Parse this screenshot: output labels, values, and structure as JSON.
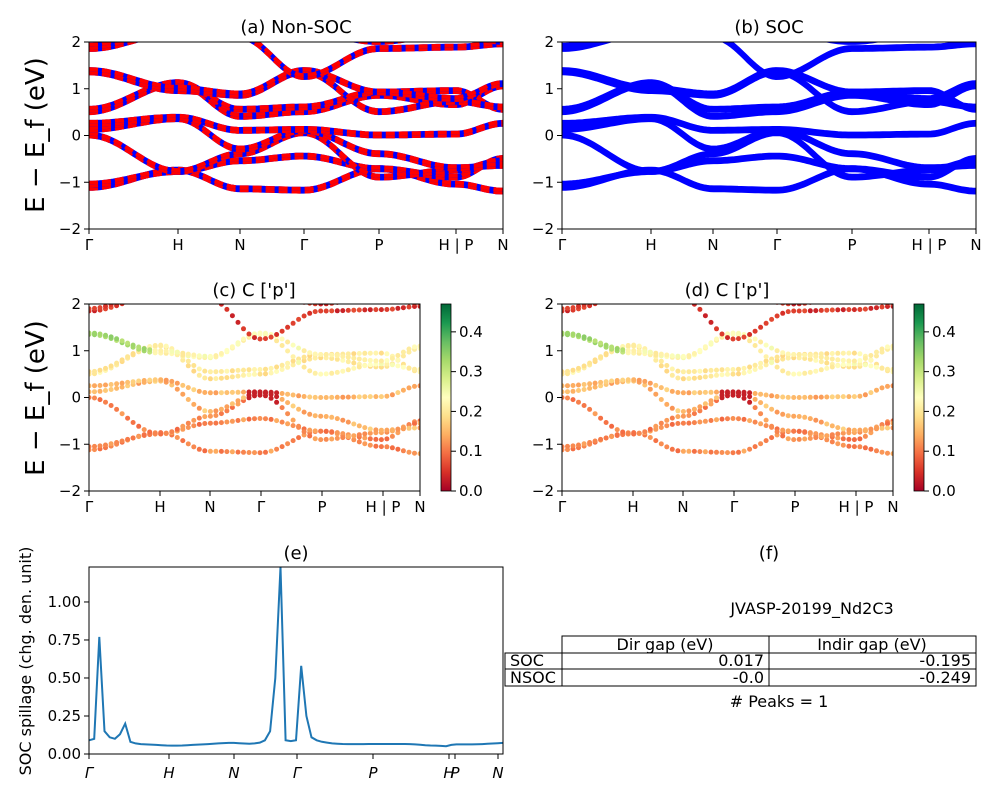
{
  "chart_data": [
    {
      "id": "a",
      "type": "line",
      "title": "(a) Non-SOC",
      "ylabel": "E − E_f (eV)",
      "ylim": [
        -2,
        2
      ],
      "yticks": [
        "−2",
        "−1",
        "0",
        "1",
        "2"
      ],
      "xticks": [
        "Γ",
        "H",
        "N",
        "Γ",
        "P",
        "H | P",
        "N"
      ],
      "series_colors": [
        "#ff0000",
        "#0000ff"
      ],
      "description_bands": "band structure with spin-up (red) and spin-down (blue) overlapping"
    },
    {
      "id": "b",
      "type": "line",
      "title": "(b) SOC",
      "ylim": [
        -2,
        2
      ],
      "yticks": [
        "−2",
        "−1",
        "0",
        "1",
        "2"
      ],
      "xticks": [
        "Γ",
        "H",
        "N",
        "Γ",
        "P",
        "H | P",
        "N"
      ],
      "series_colors": [
        "#0000ff"
      ]
    },
    {
      "id": "c",
      "type": "scatter",
      "title": "(c)  C ['p']",
      "ylabel": "E − E_f (eV)",
      "ylim": [
        -2,
        2
      ],
      "yticks": [
        "−2",
        "−1",
        "0",
        "1",
        "2"
      ],
      "xticks": [
        "Γ",
        "H",
        "N",
        "Γ",
        "P",
        "H | P",
        "N"
      ],
      "colorbar": {
        "ticks": [
          "0.0",
          "0.1",
          "0.2",
          "0.3",
          "0.4"
        ],
        "range": [
          0,
          0.47
        ],
        "cmap": "RdYlGn"
      }
    },
    {
      "id": "d",
      "type": "scatter",
      "title": "(d) C ['p']",
      "ylim": [
        -2,
        2
      ],
      "yticks": [
        "−2",
        "−1",
        "0",
        "1",
        "2"
      ],
      "xticks": [
        "Γ",
        "H",
        "N",
        "Γ",
        "P",
        "H | P",
        "N"
      ],
      "colorbar": {
        "ticks": [
          "0.0",
          "0.1",
          "0.2",
          "0.3",
          "0.4"
        ],
        "range": [
          0,
          0.47
        ],
        "cmap": "RdYlGn"
      }
    },
    {
      "id": "e",
      "type": "line",
      "title": "(e)",
      "ylabel": "SOC spillage (chg. den. unit)",
      "ylim": [
        0,
        1.23
      ],
      "yticks": [
        "0.00",
        "0.25",
        "0.50",
        "0.75",
        "1.00"
      ],
      "xticks": [
        "Γ",
        "H",
        "N",
        "Γ",
        "P",
        "H",
        "P",
        "N"
      ],
      "x": [
        0,
        1,
        2,
        3,
        4,
        5,
        6,
        7,
        8,
        9,
        10,
        11,
        12,
        13,
        14,
        15,
        16,
        17,
        18,
        19,
        20,
        21,
        22,
        23,
        24,
        25,
        26,
        27,
        28,
        29,
        30,
        31,
        32,
        33,
        34,
        35,
        36,
        37,
        38,
        39,
        40,
        41,
        42,
        43,
        44,
        45,
        46,
        47,
        48,
        49,
        50,
        51,
        52,
        53,
        54,
        55,
        56,
        57,
        58,
        59,
        60,
        61,
        62,
        63,
        64,
        65,
        66,
        67,
        68,
        69,
        70,
        71,
        72,
        73,
        74,
        75,
        76,
        77,
        78,
        79,
        80
      ],
      "values": [
        0.09,
        0.1,
        0.77,
        0.15,
        0.11,
        0.1,
        0.13,
        0.2,
        0.08,
        0.07,
        0.065,
        0.063,
        0.062,
        0.06,
        0.058,
        0.056,
        0.055,
        0.055,
        0.056,
        0.058,
        0.06,
        0.062,
        0.063,
        0.065,
        0.068,
        0.07,
        0.072,
        0.073,
        0.073,
        0.071,
        0.069,
        0.068,
        0.07,
        0.075,
        0.09,
        0.15,
        0.5,
        1.25,
        0.09,
        0.085,
        0.09,
        0.58,
        0.25,
        0.11,
        0.09,
        0.08,
        0.075,
        0.07,
        0.068,
        0.066,
        0.065,
        0.065,
        0.065,
        0.065,
        0.066,
        0.066,
        0.066,
        0.066,
        0.066,
        0.066,
        0.066,
        0.066,
        0.065,
        0.063,
        0.061,
        0.058,
        0.056,
        0.055,
        0.053,
        0.051,
        0.06,
        0.063,
        0.063,
        0.063,
        0.063,
        0.064,
        0.065,
        0.067,
        0.069,
        0.071,
        0.073
      ],
      "color": "#1f77b4"
    }
  ],
  "panel_f": {
    "title": "(f)",
    "material": "JVASP-20199_Nd2C3",
    "table": {
      "headers": [
        "",
        "Dir gap (eV)",
        "Indir gap (eV)"
      ],
      "rows": [
        [
          "SOC",
          "0.017",
          "-0.195"
        ],
        [
          "NSOC",
          "-0.0",
          "-0.249"
        ]
      ]
    },
    "peaks": "# Peaks = 1"
  }
}
